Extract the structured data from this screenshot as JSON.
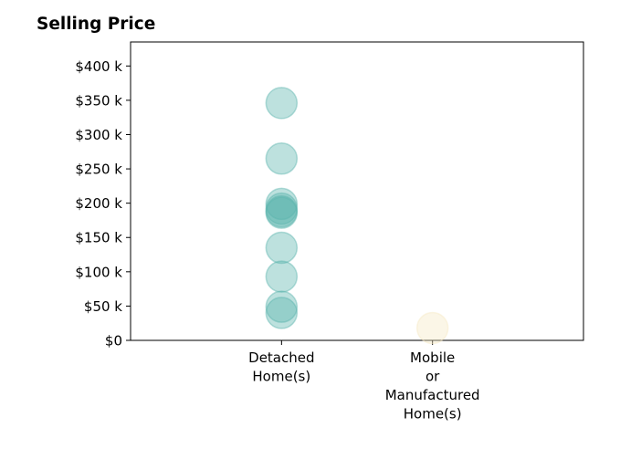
{
  "chart_data": {
    "type": "scatter",
    "title": "Selling Price",
    "xlabel": "",
    "ylabel": "",
    "categories": [
      [
        "Detached",
        "Home(s)"
      ],
      [
        "Mobile",
        "or",
        "Manufactured",
        "Home(s)"
      ]
    ],
    "y_ticks": [
      {
        "value": 0,
        "label": "$0"
      },
      {
        "value": 50000,
        "label": "$50 k"
      },
      {
        "value": 100000,
        "label": "$100 k"
      },
      {
        "value": 150000,
        "label": "$150 k"
      },
      {
        "value": 200000,
        "label": "$200 k"
      },
      {
        "value": 250000,
        "label": "$250 k"
      },
      {
        "value": 300000,
        "label": "$300 k"
      },
      {
        "value": 350000,
        "label": "$350 k"
      },
      {
        "value": 400000,
        "label": "$400 k"
      }
    ],
    "ylim": [
      0,
      435000
    ],
    "grid": false,
    "series": [
      {
        "category_index": 0,
        "color": "#5ab4ac",
        "values": [
          346000,
          265000,
          199000,
          192000,
          188000,
          186000,
          135000,
          93000,
          49000,
          40000
        ]
      },
      {
        "category_index": 1,
        "color": "#f6e8c3",
        "values": [
          18000
        ]
      }
    ]
  }
}
